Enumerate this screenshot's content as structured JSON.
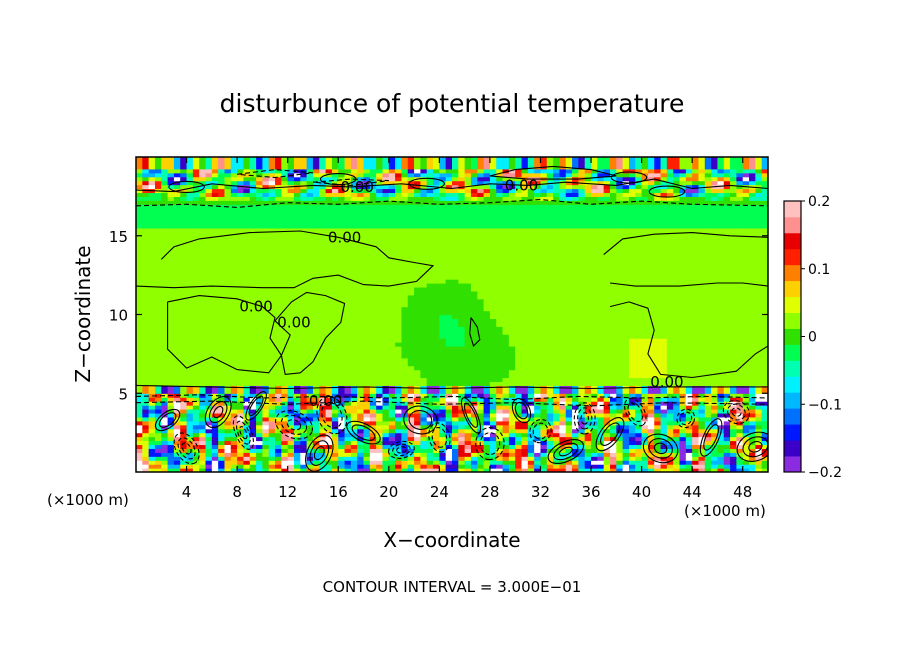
{
  "chart_data": {
    "type": "heatmap",
    "title": "disturbunce of potential temperature",
    "xlabel": "X−coordinate",
    "ylabel": "Z−coordinate",
    "x_unit_left": "(×1000 m)",
    "x_unit_right": "(×1000 m)",
    "xlim": [
      0,
      50
    ],
    "ylim": [
      0,
      20
    ],
    "x_ticks": [
      4,
      8,
      12,
      16,
      20,
      24,
      28,
      32,
      36,
      40,
      44,
      48
    ],
    "y_ticks": [
      5,
      10,
      15
    ],
    "colorbar": {
      "range": [
        -0.2,
        0.2
      ],
      "ticks": [
        0.2,
        0.1,
        0,
        -0.1,
        -0.2
      ],
      "tick_labels": [
        "0.2",
        "0.1",
        "0",
        "−0.1",
        "−0.2"
      ],
      "colors": [
        "#8a2be2",
        "#3a00c8",
        "#0018ff",
        "#0070ff",
        "#00b8ff",
        "#00f0ff",
        "#00ffb0",
        "#00ff50",
        "#30e000",
        "#90ff00",
        "#e0ff00",
        "#ffd000",
        "#ff8000",
        "#ff2000",
        "#e80000",
        "#ff9090",
        "#ffc0c0"
      ]
    },
    "contour_labels": [
      {
        "text": "0.00",
        "x": 17.5,
        "y": 18.1
      },
      {
        "text": "0.00",
        "x": 30.5,
        "y": 18.2
      },
      {
        "text": "0.00",
        "x": 16.5,
        "y": 14.9
      },
      {
        "text": "0.00",
        "x": 9.5,
        "y": 10.5
      },
      {
        "text": "0.00",
        "x": 12.5,
        "y": 9.5
      },
      {
        "text": "0.00",
        "x": 42.0,
        "y": 5.7
      },
      {
        "text": "0.00",
        "x": 15.0,
        "y": 4.5
      }
    ],
    "footer": "CONTOUR INTERVAL = 3.000E−01"
  }
}
